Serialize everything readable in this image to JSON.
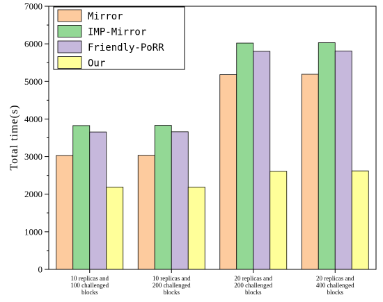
{
  "chart_data": {
    "type": "bar",
    "categories": [
      [
        "10 replicas and",
        "100 challenged",
        "blocks"
      ],
      [
        "10 replicas and",
        "200 challenged",
        "blocks"
      ],
      [
        "20 replicas and",
        "200 challenged",
        "blocks"
      ],
      [
        "20 replicas and",
        "400 challenged",
        "blocks"
      ]
    ],
    "series": [
      {
        "name": "Mirror",
        "color": "#FDCB9E",
        "values": [
          3030,
          3035,
          5180,
          5190
        ]
      },
      {
        "name": "IMP-Mirror",
        "color": "#93D895",
        "values": [
          3825,
          3830,
          6020,
          6030
        ]
      },
      {
        "name": "Friendly-PoRR",
        "color": "#C6B8DC",
        "values": [
          3655,
          3660,
          5800,
          5810
        ]
      },
      {
        "name": "Our",
        "color": "#FFFF99",
        "values": [
          2190,
          2190,
          2610,
          2620
        ]
      }
    ],
    "ylabel": "Total time(s)",
    "xlabel": "",
    "ylim": [
      0,
      7000
    ],
    "yticks": [
      0,
      1000,
      2000,
      3000,
      4000,
      5000,
      6000,
      7000
    ],
    "legend_position": "top-left",
    "grid": false
  }
}
